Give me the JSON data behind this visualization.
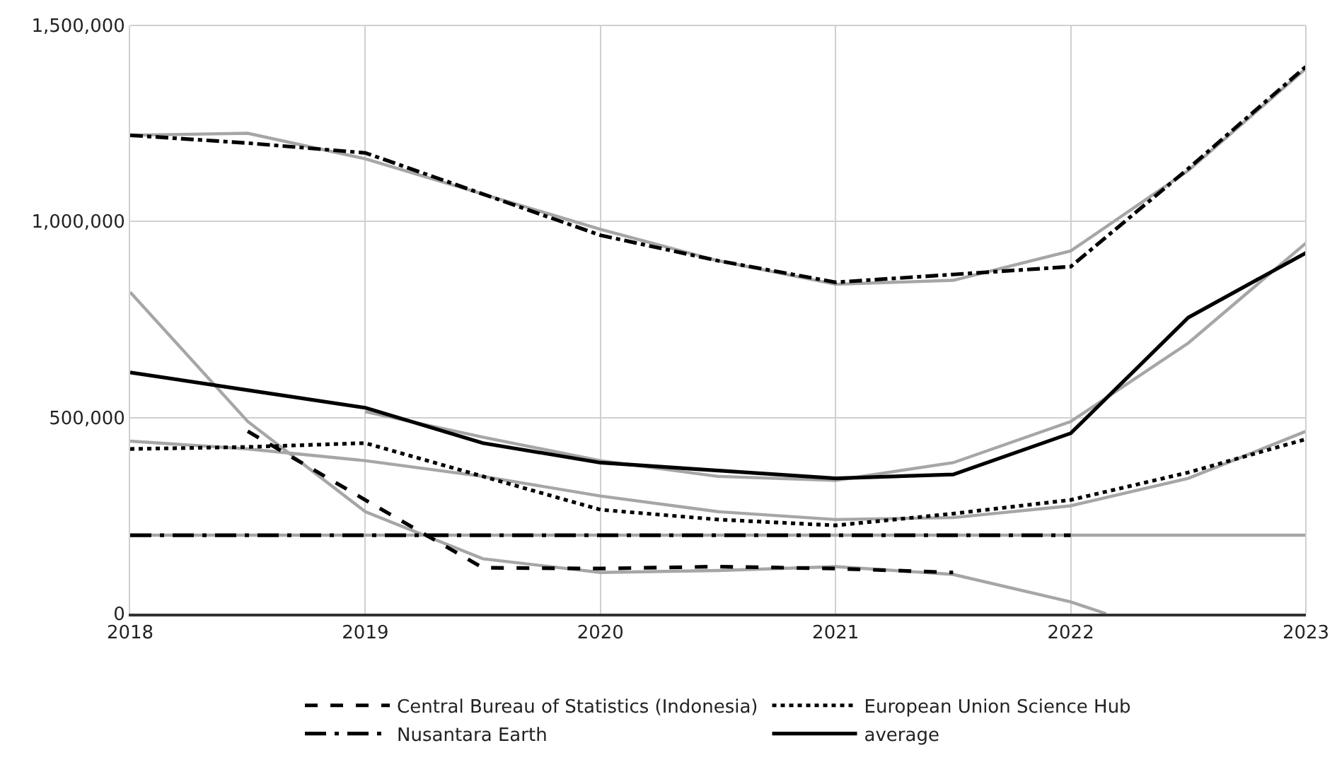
{
  "chart_data": {
    "type": "line",
    "xlim": [
      2018,
      2023
    ],
    "xticks": [
      2018,
      2019,
      2020,
      2021,
      2022,
      2023
    ],
    "ylim": [
      0,
      1500000
    ],
    "yticks": [
      {
        "value": 0,
        "label": "0"
      },
      {
        "value": 500000,
        "label": "500,000"
      },
      {
        "value": 1000000,
        "label": "1,000,000"
      },
      {
        "value": 1500000,
        "label": "1,500,000"
      }
    ],
    "grid": true,
    "legend": "bottom",
    "marker": "none",
    "series": [
      {
        "color": "#a6a6a6",
        "line_style": "solid",
        "x": [
          2018,
          2018.5,
          2019,
          2019.5,
          2020,
          2020.5,
          2021,
          2021.5,
          2022,
          2022.15
        ],
        "values": [
          820000,
          490000,
          260000,
          140000,
          105000,
          110000,
          120000,
          100000,
          30000,
          0
        ]
      },
      {
        "color": "#a6a6a6",
        "line_style": "solid",
        "x": [
          2018,
          2018.5,
          2019,
          2019.5,
          2020,
          2020.5,
          2021,
          2021.5,
          2022,
          2022.5,
          2023
        ],
        "values": [
          440000,
          420000,
          390000,
          350000,
          300000,
          260000,
          240000,
          245000,
          275000,
          345000,
          465000
        ]
      },
      {
        "color": "#a6a6a6",
        "line_style": "solid",
        "x": [
          2018,
          2018.5,
          2019,
          2019.5,
          2020,
          2020.5,
          2021,
          2021.5,
          2022,
          2022.5,
          2023
        ],
        "values": [
          1220000,
          1225000,
          1160000,
          1070000,
          980000,
          900000,
          840000,
          850000,
          925000,
          1130000,
          1390000
        ]
      },
      {
        "color": "#a6a6a6",
        "line_style": "solid",
        "x": [
          2018,
          2023
        ],
        "values": [
          200000,
          200000
        ]
      },
      {
        "color": "#a6a6a6",
        "line_style": "solid",
        "x": [
          2019,
          2019.5,
          2020,
          2020.5,
          2021,
          2021.5,
          2022,
          2022.5,
          2023
        ],
        "values": [
          515000,
          450000,
          390000,
          350000,
          340000,
          385000,
          490000,
          690000,
          945000
        ]
      },
      {
        "name": "Central Bureau of Statistics (Indonesia)",
        "color": "#000000",
        "line_style": "dashed",
        "x": [
          2018.5,
          2019,
          2019.5,
          2020,
          2020.5,
          2021,
          2021.5
        ],
        "values": [
          465000,
          290000,
          117000,
          115000,
          120000,
          115000,
          105000
        ]
      },
      {
        "name": "European Union Science Hub",
        "color": "#000000",
        "line_style": "dotted",
        "x": [
          2018,
          2018.5,
          2019,
          2019.5,
          2020,
          2020.5,
          2021,
          2021.5,
          2022,
          2022.5,
          2023
        ],
        "values": [
          420000,
          425000,
          435000,
          350000,
          265000,
          240000,
          225000,
          255000,
          290000,
          360000,
          445000
        ]
      },
      {
        "color": "#000000",
        "line_style": "dashdot",
        "x": [
          2018,
          2018.5,
          2019,
          2019.5,
          2020,
          2020.5,
          2021,
          2021.5,
          2022,
          2022.5,
          2023
        ],
        "values": [
          1220000,
          1200000,
          1175000,
          1070000,
          965000,
          900000,
          845000,
          865000,
          885000,
          1135000,
          1395000
        ]
      },
      {
        "name": "Nusantara Earth",
        "color": "#000000",
        "line_style": "longdashdot",
        "x": [
          2018,
          2019,
          2020,
          2021,
          2022
        ],
        "values": [
          200000,
          200000,
          200000,
          200000,
          200000
        ]
      },
      {
        "name": "average",
        "color": "#000000",
        "line_style": "solid",
        "x": [
          2018,
          2018.5,
          2019,
          2019.5,
          2020,
          2020.5,
          2021,
          2021.5,
          2022,
          2022.5,
          2023
        ],
        "values": [
          615000,
          570000,
          525000,
          435000,
          385000,
          365000,
          345000,
          355000,
          460000,
          755000,
          920000
        ]
      }
    ]
  }
}
